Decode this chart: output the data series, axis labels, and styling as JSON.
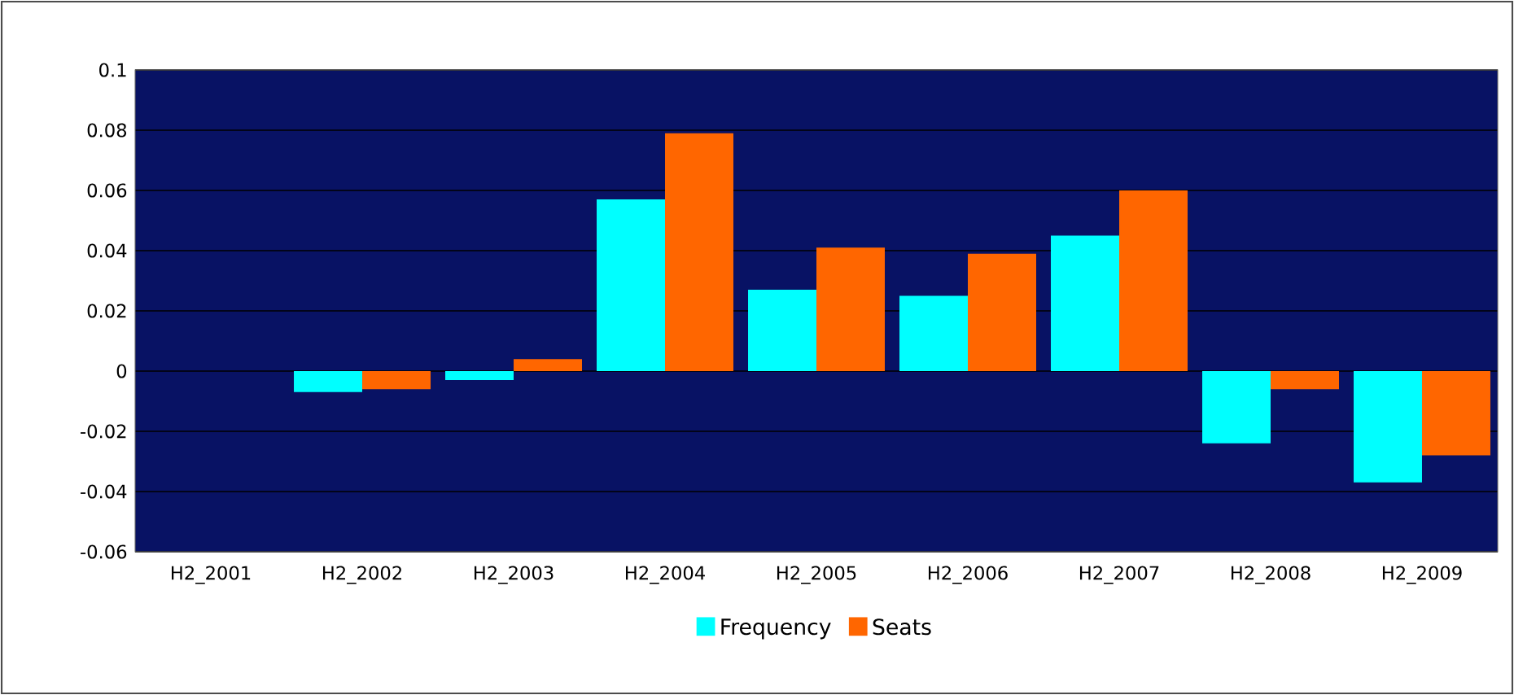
{
  "chart_data": {
    "type": "bar",
    "categories": [
      "H2_2001",
      "H2_2002",
      "H2_2003",
      "H2_2004",
      "H2_2005",
      "H2_2006",
      "H2_2007",
      "H2_2008",
      "H2_2009"
    ],
    "series": [
      {
        "name": "Frequency",
        "color": "#00ffff",
        "values": [
          0,
          -0.007,
          -0.003,
          0.057,
          0.027,
          0.025,
          0.045,
          -0.024,
          -0.037
        ]
      },
      {
        "name": "Seats",
        "color": "#ff6600",
        "values": [
          0,
          -0.006,
          0.004,
          0.079,
          0.041,
          0.039,
          0.06,
          -0.006,
          -0.028
        ]
      }
    ],
    "ylim": [
      -0.06,
      0.1
    ],
    "yticks": [
      -0.06,
      -0.04,
      -0.02,
      0,
      0.02,
      0.04,
      0.06,
      0.08,
      0.1
    ],
    "grid": "y",
    "legend": "bottom"
  }
}
